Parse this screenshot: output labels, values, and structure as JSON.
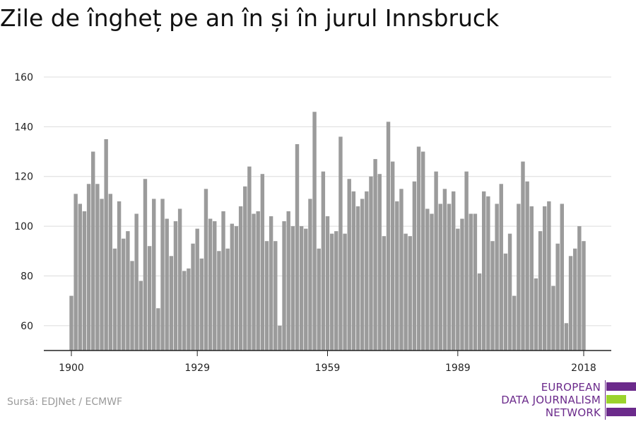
{
  "title": "Zile de îngheț pe an în și în jurul Innsbruck",
  "source": "Sursă: EDJNet / ECMWF",
  "logo": {
    "lines": [
      "EUROPEAN",
      "DATA JOURNALISM",
      "NETWORK"
    ],
    "colors": {
      "purple": "#6b2a8b",
      "green": "#9bd32c"
    }
  },
  "colors": {
    "bar": "#9b9b9b",
    "grid": "#dcdcdc",
    "axis": "#222222"
  },
  "chart_data": {
    "type": "bar",
    "title": "Zile de îngheț pe an în și în jurul Innsbruck",
    "xlabel": "",
    "ylabel": "",
    "x_start": 1900,
    "x_end": 2018,
    "xticks": [
      1900,
      1929,
      1959,
      1989,
      2018
    ],
    "yticks": [
      60,
      80,
      100,
      120,
      140,
      160
    ],
    "ylim": [
      50,
      160
    ],
    "grid": true,
    "values": [
      72,
      113,
      109,
      106,
      117,
      130,
      117,
      111,
      135,
      113,
      91,
      110,
      95,
      98,
      86,
      105,
      78,
      119,
      92,
      111,
      67,
      111,
      103,
      88,
      102,
      107,
      82,
      83,
      93,
      99,
      87,
      115,
      103,
      102,
      90,
      106,
      91,
      101,
      100,
      108,
      116,
      124,
      105,
      106,
      121,
      94,
      104,
      94,
      60,
      102,
      106,
      100,
      133,
      100,
      99,
      111,
      146,
      91,
      122,
      104,
      97,
      98,
      136,
      97,
      119,
      114,
      108,
      111,
      114,
      120,
      127,
      121,
      96,
      142,
      126,
      110,
      115,
      97,
      96,
      118,
      132,
      130,
      107,
      105,
      122,
      109,
      115,
      109,
      114,
      99,
      103,
      122,
      105,
      105,
      81,
      114,
      112,
      94,
      109,
      117,
      89,
      97,
      72,
      109,
      126,
      118,
      108,
      79,
      98,
      108,
      110,
      76,
      93,
      109,
      61,
      88,
      91,
      100,
      94
    ]
  }
}
